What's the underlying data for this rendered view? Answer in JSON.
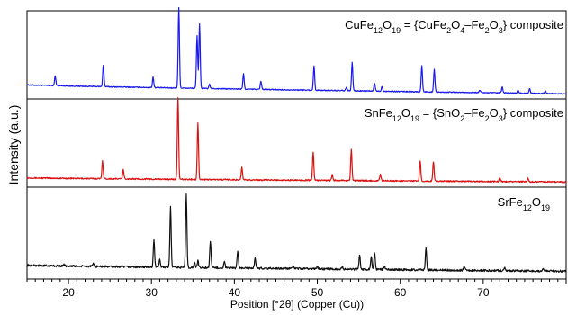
{
  "chart_data": {
    "type": "line",
    "layout": "stacked-panels",
    "xlabel": "Position [°2θ] (Copper (Cu))",
    "ylabel": "Intensity (a.u.)",
    "xlim": [
      15,
      80
    ],
    "xticks": [
      20,
      30,
      40,
      50,
      60,
      70
    ],
    "grid": false,
    "series": [
      {
        "name": "CuFe12O19 = {CuFe2O4–Fe2O3} composite",
        "label_parts": [
          {
            "t": "CuFe",
            "s": "n"
          },
          {
            "t": "12",
            "s": "b"
          },
          {
            "t": "O",
            "s": "n"
          },
          {
            "t": "19",
            "s": "b"
          },
          {
            "t": " = {CuFe",
            "s": "n"
          },
          {
            "t": "2",
            "s": "b"
          },
          {
            "t": "O",
            "s": "n"
          },
          {
            "t": "4",
            "s": "b"
          },
          {
            "t": "–Fe",
            "s": "n"
          },
          {
            "t": "2",
            "s": "b"
          },
          {
            "t": "O",
            "s": "n"
          },
          {
            "t": "3",
            "s": "b"
          },
          {
            "t": "} composite",
            "s": "n"
          }
        ],
        "color": "#1a1aee",
        "baseline": {
          "start": 0.13,
          "end": 0.02
        },
        "noise": 0.006,
        "peaks": [
          [
            18.4,
            0.12
          ],
          [
            24.2,
            0.27
          ],
          [
            30.2,
            0.13
          ],
          [
            33.3,
            1.0
          ],
          [
            35.5,
            0.65
          ],
          [
            35.8,
            0.8
          ],
          [
            37.0,
            0.05
          ],
          [
            41.1,
            0.19
          ],
          [
            43.2,
            0.1
          ],
          [
            49.6,
            0.3
          ],
          [
            53.5,
            0.04
          ],
          [
            54.2,
            0.35
          ],
          [
            56.9,
            0.1
          ],
          [
            57.8,
            0.06
          ],
          [
            62.6,
            0.32
          ],
          [
            64.1,
            0.28
          ],
          [
            69.6,
            0.03
          ],
          [
            72.3,
            0.07
          ],
          [
            74.2,
            0.04
          ],
          [
            75.6,
            0.06
          ],
          [
            77.5,
            0.03
          ]
        ]
      },
      {
        "name": "SnFe12O19 = {SnO2–Fe2O3} composite",
        "label_parts": [
          {
            "t": "SnFe",
            "s": "n"
          },
          {
            "t": "12",
            "s": "b"
          },
          {
            "t": "O",
            "s": "n"
          },
          {
            "t": "19",
            "s": "b"
          },
          {
            "t": " = {SnO",
            "s": "n"
          },
          {
            "t": "2",
            "s": "b"
          },
          {
            "t": "–Fe",
            "s": "n"
          },
          {
            "t": "2",
            "s": "b"
          },
          {
            "t": "O",
            "s": "n"
          },
          {
            "t": "3",
            "s": "b"
          },
          {
            "t": "} composite",
            "s": "n"
          }
        ],
        "color": "#dd1111",
        "baseline": {
          "start": 0.07,
          "end": 0.02
        },
        "noise": 0.008,
        "peaks": [
          [
            24.1,
            0.22
          ],
          [
            26.6,
            0.11
          ],
          [
            33.2,
            1.0
          ],
          [
            35.6,
            0.7
          ],
          [
            40.9,
            0.15
          ],
          [
            49.5,
            0.35
          ],
          [
            51.8,
            0.07
          ],
          [
            54.1,
            0.38
          ],
          [
            57.6,
            0.08
          ],
          [
            62.4,
            0.25
          ],
          [
            64.0,
            0.24
          ],
          [
            72.0,
            0.05
          ],
          [
            75.4,
            0.04
          ]
        ]
      },
      {
        "name": "SrFe12O19",
        "label_parts": [
          {
            "t": "SrFe",
            "s": "n"
          },
          {
            "t": "12",
            "s": "b"
          },
          {
            "t": "O",
            "s": "n"
          },
          {
            "t": "19",
            "s": "b"
          }
        ],
        "color": "#111111",
        "baseline": {
          "start": 0.12,
          "end": 0.05
        },
        "noise": 0.012,
        "peaks": [
          [
            19.5,
            0.02
          ],
          [
            23.0,
            0.03
          ],
          [
            30.3,
            0.33
          ],
          [
            31.0,
            0.1
          ],
          [
            32.3,
            0.71
          ],
          [
            34.2,
            0.87
          ],
          [
            35.2,
            0.07
          ],
          [
            35.6,
            0.08
          ],
          [
            37.1,
            0.32
          ],
          [
            38.8,
            0.07
          ],
          [
            40.4,
            0.21
          ],
          [
            42.5,
            0.12
          ],
          [
            47.1,
            0.03
          ],
          [
            50.0,
            0.03
          ],
          [
            53.0,
            0.03
          ],
          [
            55.1,
            0.17
          ],
          [
            56.5,
            0.16
          ],
          [
            56.9,
            0.2
          ],
          [
            58.1,
            0.04
          ],
          [
            63.1,
            0.27
          ],
          [
            67.7,
            0.05
          ],
          [
            72.6,
            0.04
          ],
          [
            77.2,
            0.03
          ]
        ]
      }
    ]
  }
}
